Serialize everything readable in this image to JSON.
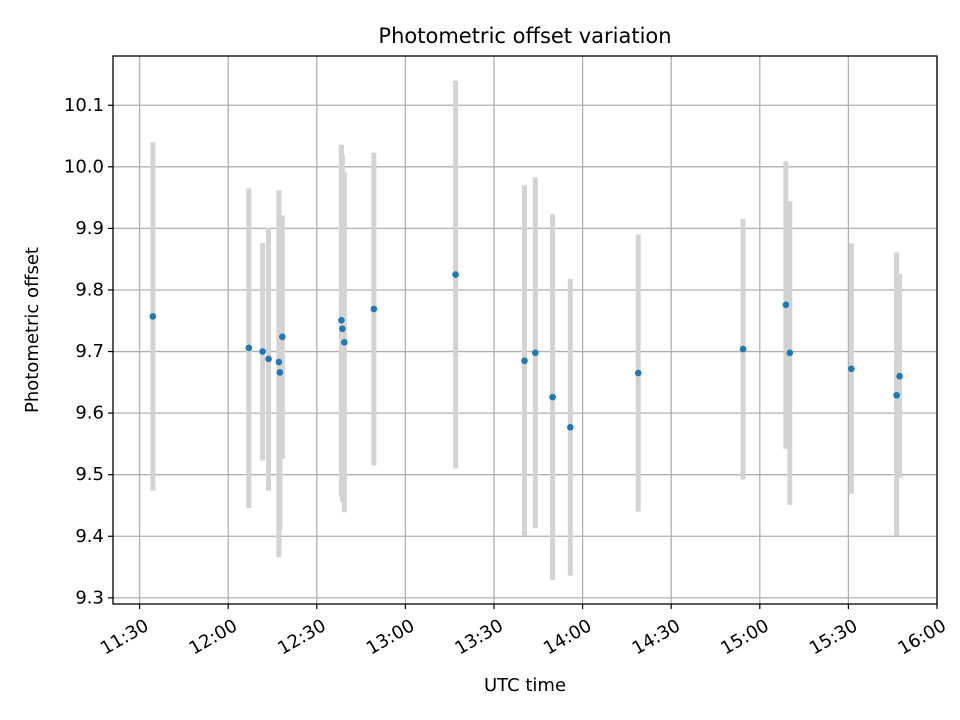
{
  "chart_data": {
    "type": "scatter",
    "title": "Photometric offset variation",
    "xlabel": "UTC time",
    "ylabel": "Photometric offset",
    "x_ticks": [
      "11:30",
      "12:00",
      "12:30",
      "13:00",
      "13:30",
      "14:00",
      "14:30",
      "15:00",
      "15:30",
      "16:00"
    ],
    "y_ticks": [
      "9.3",
      "9.4",
      "9.5",
      "9.6",
      "9.7",
      "9.8",
      "9.9",
      "10.0",
      "10.1"
    ],
    "xlim": [
      "11:21",
      "16:00"
    ],
    "ylim": [
      9.29,
      10.18
    ],
    "grid": true,
    "colors": {
      "point": "#1f77b4",
      "errorbar": "#d3d3d3",
      "grid": "#b0b0b0"
    },
    "points": [
      {
        "x": "11:34:30",
        "y": 9.757,
        "ylow": 9.474,
        "yhigh": 10.04
      },
      {
        "x": "12:07:00",
        "y": 9.706,
        "ylow": 9.446,
        "yhigh": 9.965
      },
      {
        "x": "12:11:40",
        "y": 9.7,
        "ylow": 9.523,
        "yhigh": 9.876
      },
      {
        "x": "12:13:40",
        "y": 9.688,
        "ylow": 9.474,
        "yhigh": 9.901
      },
      {
        "x": "12:17:10",
        "y": 9.683,
        "ylow": 9.366,
        "yhigh": 9.962
      },
      {
        "x": "12:17:30",
        "y": 9.666,
        "ylow": 9.41,
        "yhigh": 9.92
      },
      {
        "x": "12:18:20",
        "y": 9.724,
        "ylow": 9.526,
        "yhigh": 9.921
      },
      {
        "x": "12:38:20",
        "y": 9.751,
        "ylow": 9.465,
        "yhigh": 10.036
      },
      {
        "x": "12:38:40",
        "y": 9.737,
        "ylow": 9.456,
        "yhigh": 10.019
      },
      {
        "x": "12:39:20",
        "y": 9.715,
        "ylow": 9.439,
        "yhigh": 9.992
      },
      {
        "x": "12:49:20",
        "y": 9.769,
        "ylow": 9.515,
        "yhigh": 10.023
      },
      {
        "x": "13:17:00",
        "y": 9.825,
        "ylow": 9.51,
        "yhigh": 10.14
      },
      {
        "x": "13:40:20",
        "y": 9.685,
        "ylow": 9.401,
        "yhigh": 9.97
      },
      {
        "x": "13:44:00",
        "y": 9.698,
        "ylow": 9.413,
        "yhigh": 9.983
      },
      {
        "x": "13:49:50",
        "y": 9.626,
        "ylow": 9.329,
        "yhigh": 9.923
      },
      {
        "x": "13:55:50",
        "y": 9.577,
        "ylow": 9.336,
        "yhigh": 9.818
      },
      {
        "x": "14:18:50",
        "y": 9.665,
        "ylow": 9.44,
        "yhigh": 9.89
      },
      {
        "x": "14:54:20",
        "y": 9.704,
        "ylow": 9.492,
        "yhigh": 9.915
      },
      {
        "x": "15:08:50",
        "y": 9.776,
        "ylow": 9.542,
        "yhigh": 10.009
      },
      {
        "x": "15:10:10",
        "y": 9.698,
        "ylow": 9.451,
        "yhigh": 9.944
      },
      {
        "x": "15:31:00",
        "y": 9.672,
        "ylow": 9.469,
        "yhigh": 9.876
      },
      {
        "x": "15:46:20",
        "y": 9.629,
        "ylow": 9.401,
        "yhigh": 9.861
      },
      {
        "x": "15:47:20",
        "y": 9.66,
        "ylow": 9.495,
        "yhigh": 9.826
      }
    ]
  }
}
